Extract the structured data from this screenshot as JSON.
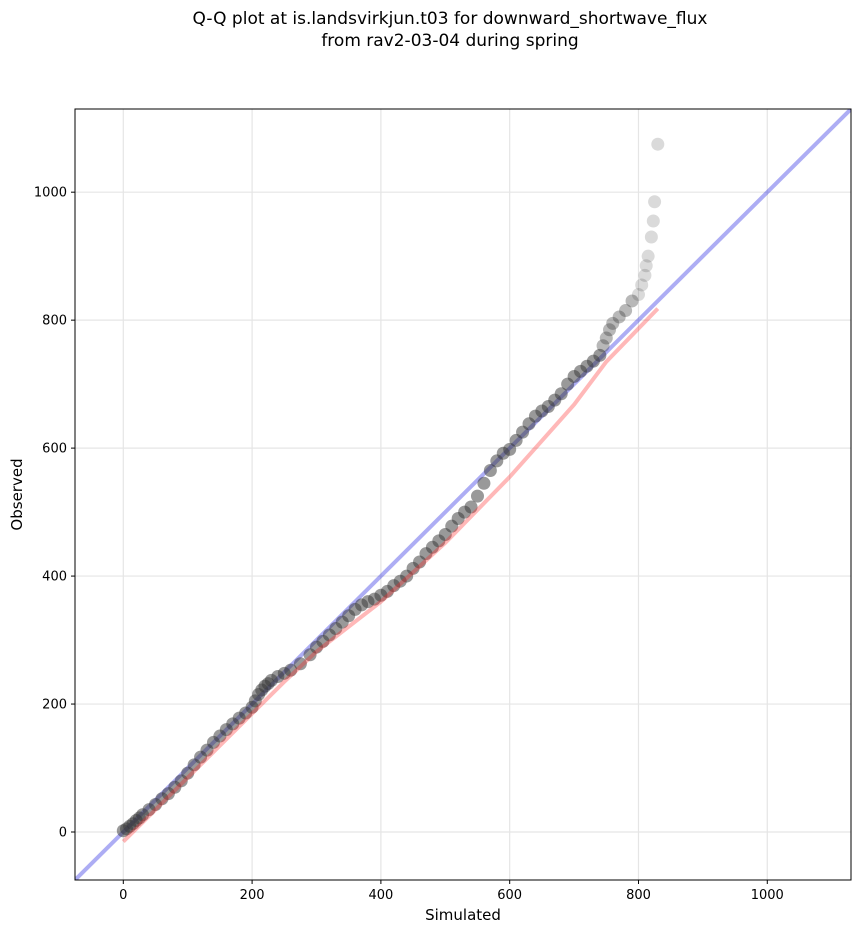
{
  "chart_data": {
    "type": "scatter",
    "title": "Q-Q plot at is.landsvirkjun.t03 for downward_shortwave_flux",
    "subtitle": "from rav2-03-04 during spring",
    "xlabel": "Simulated",
    "ylabel": "Observed",
    "xlim": [
      -75,
      1130
    ],
    "ylim": [
      -75,
      1130
    ],
    "x_ticks": [
      "0",
      "200",
      "400",
      "600",
      "800",
      "1000"
    ],
    "y_ticks": [
      "0",
      "200",
      "400",
      "600",
      "800",
      "1000"
    ],
    "grid": true,
    "colors": {
      "points": "#333333",
      "identity_line": "#0000dd",
      "fit_line": "#ff2222",
      "grid": "#e5e5e5"
    },
    "series": [
      {
        "kind": "points",
        "x": [
          0,
          5,
          10,
          15,
          20,
          25,
          30,
          40,
          50,
          60,
          70,
          80,
          90,
          100,
          110,
          120,
          130,
          140,
          150,
          160,
          170,
          180,
          190,
          200,
          205,
          210,
          215,
          220,
          225,
          230,
          240,
          250,
          260,
          275,
          290,
          300,
          310,
          320,
          330,
          340,
          350,
          360,
          370,
          380,
          390,
          400,
          410,
          420,
          430,
          440,
          450,
          460,
          470,
          480,
          490,
          500,
          510,
          520,
          530,
          540,
          550,
          560,
          570,
          580,
          590,
          600,
          610,
          620,
          630,
          640,
          650,
          660,
          670,
          680,
          690,
          700,
          710,
          720,
          730,
          740,
          745,
          750,
          755,
          760,
          770,
          780,
          790,
          800,
          805,
          810,
          812,
          815,
          820,
          823,
          825,
          830
        ],
        "y": [
          2,
          5,
          9,
          13,
          18,
          22,
          27,
          35,
          43,
          52,
          60,
          70,
          80,
          92,
          105,
          117,
          128,
          140,
          150,
          160,
          169,
          178,
          186,
          195,
          205,
          215,
          222,
          228,
          232,
          237,
          243,
          248,
          253,
          263,
          277,
          289,
          298,
          308,
          318,
          328,
          338,
          348,
          355,
          360,
          364,
          370,
          376,
          385,
          392,
          400,
          412,
          422,
          435,
          445,
          455,
          465,
          478,
          490,
          500,
          508,
          525,
          545,
          565,
          580,
          592,
          598,
          612,
          625,
          638,
          650,
          658,
          665,
          675,
          685,
          700,
          712,
          720,
          728,
          736,
          745,
          760,
          772,
          785,
          795,
          805,
          815,
          830,
          840,
          855,
          870,
          885,
          900,
          930,
          955,
          985,
          1075
        ]
      },
      {
        "kind": "identity-line",
        "x": [
          -75,
          1130
        ],
        "y": [
          -75,
          1130
        ]
      },
      {
        "kind": "fit-line",
        "x": [
          0,
          100,
          200,
          250,
          300,
          400,
          500,
          600,
          700,
          750,
          830
        ],
        "y": [
          -15,
          85,
          185,
          235,
          282,
          360,
          452,
          555,
          668,
          735,
          818
        ]
      }
    ]
  }
}
